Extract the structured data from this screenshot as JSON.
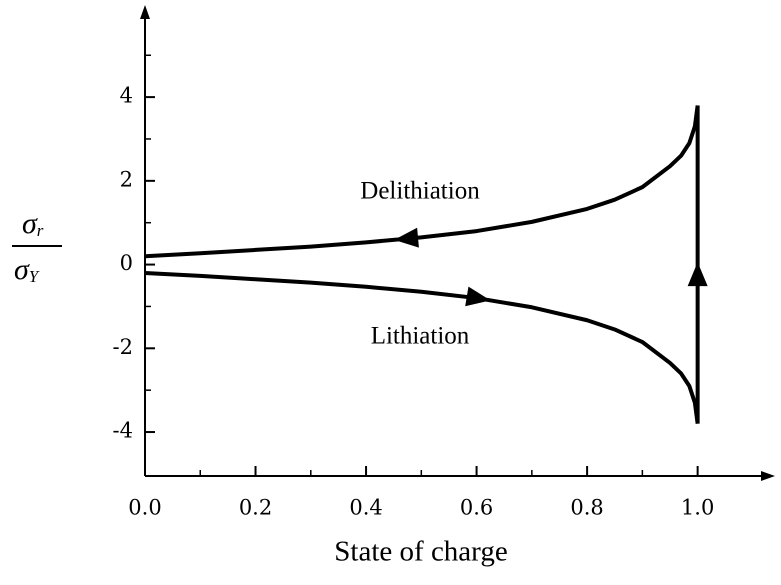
{
  "chart_data": {
    "type": "line",
    "xlabel": "State of charge",
    "ylabel": {
      "top": "σ",
      "top_sub": "r",
      "bottom": "σ",
      "bottom_sub": "Y"
    },
    "series": [
      {
        "name": "Delithiation",
        "color": "#000000",
        "x": [
          1.0,
          0.995,
          0.985,
          0.97,
          0.95,
          0.9,
          0.85,
          0.8,
          0.7,
          0.6,
          0.5,
          0.4,
          0.3,
          0.2,
          0.1,
          0.0
        ],
        "values": [
          3.8,
          3.3,
          2.9,
          2.6,
          2.35,
          1.85,
          1.55,
          1.33,
          1.02,
          0.8,
          0.65,
          0.53,
          0.43,
          0.35,
          0.27,
          0.2
        ]
      },
      {
        "name": "Lithiation",
        "color": "#000000",
        "x": [
          0.0,
          0.1,
          0.2,
          0.3,
          0.4,
          0.5,
          0.6,
          0.7,
          0.8,
          0.85,
          0.9,
          0.95,
          0.97,
          0.985,
          0.995,
          1.0
        ],
        "values": [
          -0.2,
          -0.27,
          -0.35,
          -0.43,
          -0.53,
          -0.65,
          -0.8,
          -1.02,
          -1.33,
          -1.55,
          -1.85,
          -2.35,
          -2.6,
          -2.9,
          -3.3,
          -3.8
        ]
      },
      {
        "color": "#000000",
        "x": [
          1.0,
          1.0
        ],
        "values": [
          -3.8,
          3.8
        ]
      }
    ],
    "xlim": [
      0,
      1.14
    ],
    "ylim": [
      -5.05,
      6.2
    ],
    "xticks": [
      {
        "value": 0,
        "label": "0.0"
      },
      0.2,
      0.4,
      0.6,
      0.8,
      {
        "value": 1,
        "label": "1.0"
      }
    ],
    "xminorticks": [
      0.1,
      0.3,
      0.5,
      0.7,
      0.9
    ],
    "yticks": [
      -4,
      -2,
      0,
      2,
      4
    ],
    "yminorticks": [
      -3,
      -1,
      1,
      3,
      5
    ],
    "grid": false
  }
}
